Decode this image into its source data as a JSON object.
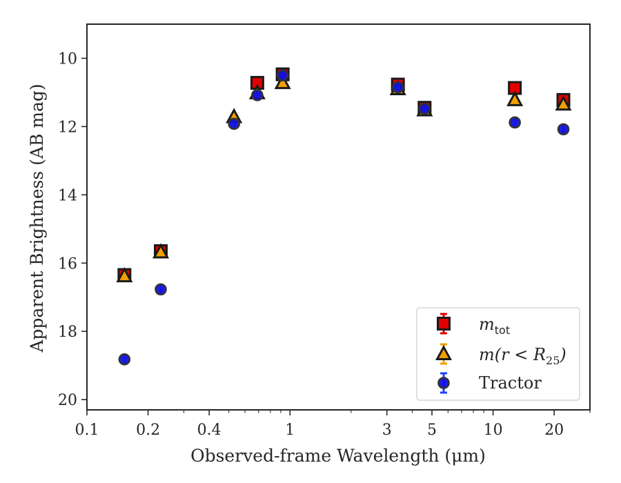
{
  "chart_data": {
    "type": "scatter",
    "xlabel": "Observed-frame Wavelength (μm)",
    "ylabel": "Apparent Brightness (AB mag)",
    "x_scale": "log",
    "xlim": [
      0.1,
      30
    ],
    "ylim": [
      20.3,
      9.0
    ],
    "y_inverted": true,
    "x_ticks": [
      0.1,
      0.2,
      0.4,
      1,
      3,
      5,
      10,
      20
    ],
    "x_tick_labels": [
      "0.1",
      "0.2",
      "0.4",
      "1",
      "3",
      "5",
      "10",
      "20"
    ],
    "y_ticks": [
      10,
      12,
      14,
      16,
      18,
      20
    ],
    "y_tick_labels": [
      "10",
      "12",
      "14",
      "16",
      "18",
      "20"
    ],
    "grid": false,
    "legend_position": "lower right",
    "series": [
      {
        "name": "m_tot",
        "legend_main": "m",
        "legend_sub": "tot",
        "marker": "square",
        "color": "#e00000",
        "errorbar_color": "#e00000",
        "x": [
          0.153,
          0.231,
          0.69,
          0.92,
          3.4,
          4.6,
          12.8,
          22.2
        ],
        "y": [
          16.35,
          15.65,
          10.72,
          10.47,
          10.77,
          11.45,
          10.87,
          11.22
        ]
      },
      {
        "name": "m(r < R_25)",
        "legend_main": "m(r < R",
        "legend_sub": "25",
        "legend_tail": ")",
        "marker": "triangle",
        "color": "#f0a000",
        "errorbar_color": "#f0a000",
        "x": [
          0.153,
          0.231,
          0.53,
          0.69,
          0.92,
          3.4,
          4.6,
          12.8,
          22.2
        ],
        "y": [
          16.38,
          15.68,
          11.72,
          11.02,
          10.72,
          10.9,
          11.52,
          11.22,
          11.35
        ]
      },
      {
        "name": "Tractor",
        "marker": "circle",
        "color": "#1010e0",
        "errorbar_color": "#2040ff",
        "x": [
          0.153,
          0.231,
          0.53,
          0.69,
          0.92,
          3.4,
          4.6,
          12.8,
          22.2
        ],
        "y": [
          18.82,
          16.77,
          11.92,
          11.08,
          10.5,
          10.85,
          11.48,
          11.88,
          12.08
        ]
      }
    ]
  }
}
